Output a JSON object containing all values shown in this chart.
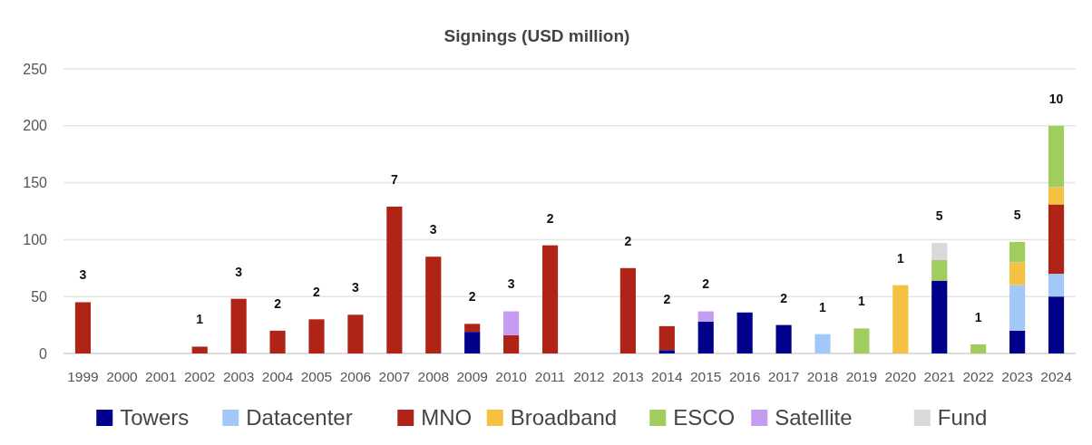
{
  "chart_data": {
    "type": "bar",
    "title": "Signings (USD million)",
    "stacked": true,
    "grid": "y",
    "legend": "bottom",
    "categories": [
      "1999",
      "2000",
      "2001",
      "2002",
      "2003",
      "2004",
      "2005",
      "2006",
      "2007",
      "2008",
      "2009",
      "2010",
      "2011",
      "2012",
      "2013",
      "2014",
      "2015",
      "2016",
      "2017",
      "2018",
      "2019",
      "2020",
      "2021",
      "2022",
      "2023",
      "2024"
    ],
    "ylim": [
      0,
      250
    ],
    "yticks": [
      0,
      50,
      100,
      150,
      200,
      250
    ],
    "series": [
      {
        "name": "Towers",
        "color": "#00008b",
        "values": [
          null,
          null,
          null,
          null,
          null,
          null,
          null,
          null,
          null,
          null,
          19,
          null,
          null,
          null,
          null,
          3,
          28,
          36,
          25,
          null,
          null,
          null,
          64,
          null,
          20,
          50
        ]
      },
      {
        "name": "Datacenter",
        "color": "#a2c8f8",
        "values": [
          null,
          null,
          null,
          null,
          null,
          null,
          null,
          null,
          null,
          null,
          null,
          null,
          null,
          null,
          null,
          null,
          null,
          null,
          null,
          17,
          null,
          null,
          null,
          null,
          40,
          20
        ]
      },
      {
        "name": "MNO",
        "color": "#b02418",
        "values": [
          45,
          null,
          null,
          6,
          48,
          20,
          30,
          34,
          129,
          85,
          7,
          16,
          95,
          null,
          75,
          21,
          null,
          null,
          null,
          null,
          null,
          null,
          null,
          null,
          null,
          61
        ]
      },
      {
        "name": "Broadband",
        "color": "#f4c142",
        "values": [
          null,
          null,
          null,
          null,
          null,
          null,
          null,
          null,
          null,
          null,
          null,
          null,
          null,
          null,
          null,
          null,
          null,
          null,
          null,
          null,
          null,
          60,
          null,
          null,
          20,
          15
        ]
      },
      {
        "name": "ESCO",
        "color": "#a1cd5e",
        "values": [
          null,
          null,
          null,
          null,
          null,
          null,
          null,
          null,
          null,
          null,
          null,
          null,
          null,
          null,
          null,
          null,
          null,
          null,
          null,
          null,
          22,
          null,
          18,
          8,
          18,
          54
        ]
      },
      {
        "name": "Satellite",
        "color": "#c59cf0",
        "values": [
          null,
          null,
          null,
          null,
          null,
          null,
          null,
          null,
          null,
          null,
          null,
          21,
          null,
          null,
          null,
          null,
          9,
          null,
          null,
          null,
          null,
          null,
          null,
          null,
          null,
          null
        ]
      },
      {
        "name": "Fund",
        "color": "#d9d9d9",
        "values": [
          null,
          null,
          null,
          null,
          null,
          null,
          null,
          null,
          null,
          null,
          null,
          null,
          null,
          null,
          null,
          null,
          null,
          null,
          null,
          null,
          null,
          null,
          15,
          null,
          null,
          null
        ]
      }
    ],
    "annotations": [
      "3",
      "1",
      "3",
      "2",
      "2",
      "3",
      "7",
      "3",
      "2",
      "3",
      "2",
      "2",
      "2",
      "2",
      "2",
      "1",
      "1",
      "1",
      "5",
      "1",
      "5",
      "10"
    ]
  }
}
